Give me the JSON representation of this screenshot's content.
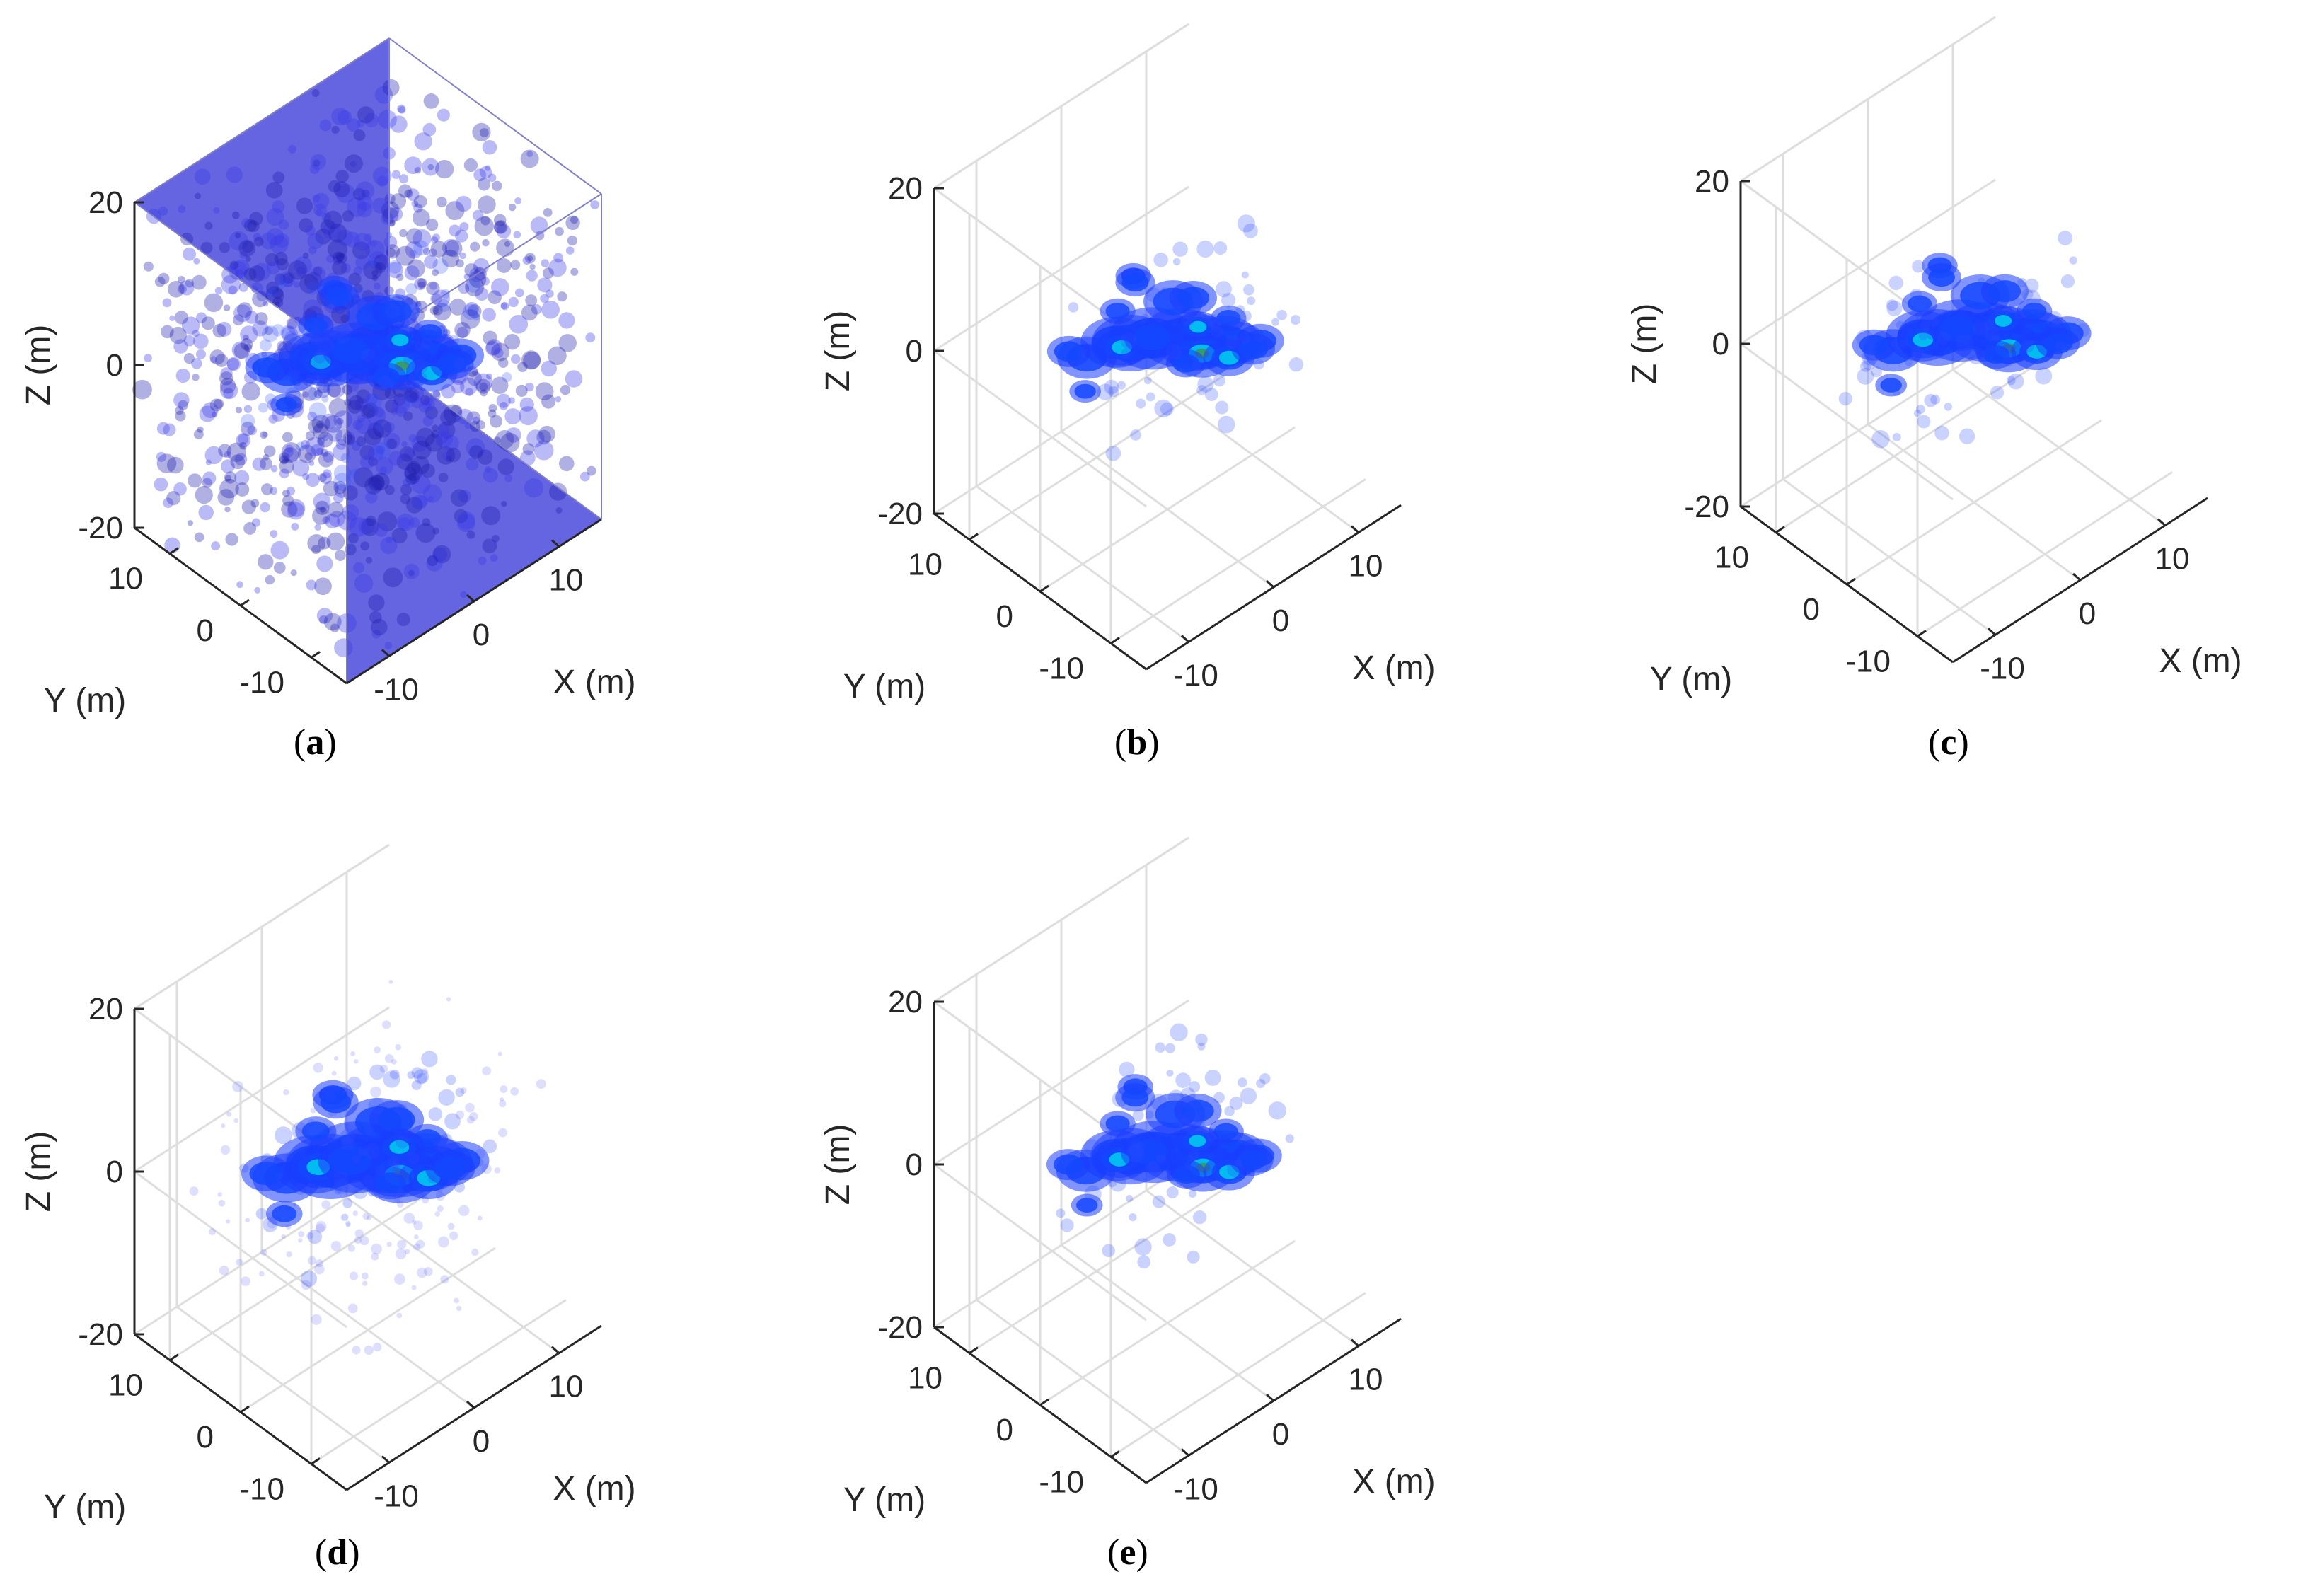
{
  "chart_data": [
    {
      "type": "3d-volume",
      "panel_label": "a",
      "xlabel": "X (m)",
      "ylabel": "Y (m)",
      "zlabel": "Z (m)",
      "xticks": [
        "-10",
        "0",
        "10"
      ],
      "yticks": [
        "10",
        "0",
        "-10"
      ],
      "zticks": [
        "20",
        "0",
        "-20"
      ],
      "xlim": [
        -15,
        15
      ],
      "ylim": [
        -15,
        15
      ],
      "zlim": [
        -20,
        20
      ],
      "grid": false,
      "box": true,
      "background_haze": "dense",
      "colormap": [
        "#2020c8",
        "#1848ff",
        "#00d8ff",
        "#2fa060"
      ]
    },
    {
      "type": "3d-volume",
      "panel_label": "b",
      "xlabel": "X (m)",
      "ylabel": "Y (m)",
      "zlabel": "Z (m)",
      "xticks": [
        "-10",
        "0",
        "10"
      ],
      "yticks": [
        "10",
        "0",
        "-10"
      ],
      "zticks": [
        "20",
        "0",
        "-20"
      ],
      "xlim": [
        -15,
        15
      ],
      "ylim": [
        -15,
        15
      ],
      "zlim": [
        -20,
        20
      ],
      "grid": true,
      "box": false,
      "background_haze": "none",
      "colormap": [
        "#2020c8",
        "#1848ff",
        "#00d8ff",
        "#2fa060"
      ]
    },
    {
      "type": "3d-volume",
      "panel_label": "c",
      "xlabel": "X (m)",
      "ylabel": "Y (m)",
      "zlabel": "Z (m)",
      "xticks": [
        "-10",
        "0",
        "10"
      ],
      "yticks": [
        "10",
        "0",
        "-10"
      ],
      "zticks": [
        "20",
        "0",
        "-20"
      ],
      "xlim": [
        -15,
        15
      ],
      "ylim": [
        -15,
        15
      ],
      "zlim": [
        -20,
        20
      ],
      "grid": true,
      "box": false,
      "background_haze": "none",
      "colormap": [
        "#2020c8",
        "#1848ff",
        "#00d8ff",
        "#2fa060"
      ]
    },
    {
      "type": "3d-volume",
      "panel_label": "d",
      "xlabel": "X (m)",
      "ylabel": "Y (m)",
      "zlabel": "Z (m)",
      "xticks": [
        "-10",
        "0",
        "10"
      ],
      "yticks": [
        "10",
        "0",
        "-10"
      ],
      "zticks": [
        "20",
        "0",
        "-20"
      ],
      "xlim": [
        -15,
        15
      ],
      "ylim": [
        -15,
        15
      ],
      "zlim": [
        -20,
        20
      ],
      "grid": true,
      "box": false,
      "background_haze": "sparse",
      "colormap": [
        "#2020c8",
        "#1848ff",
        "#00d8ff",
        "#2fa060"
      ]
    },
    {
      "type": "3d-volume",
      "panel_label": "e",
      "xlabel": "X (m)",
      "ylabel": "Y (m)",
      "zlabel": "Z (m)",
      "xticks": [
        "-10",
        "0",
        "10"
      ],
      "yticks": [
        "10",
        "0",
        "-10"
      ],
      "zticks": [
        "20",
        "0",
        "-20"
      ],
      "xlim": [
        -15,
        15
      ],
      "ylim": [
        -15,
        15
      ],
      "zlim": [
        -20,
        20
      ],
      "grid": true,
      "box": false,
      "background_haze": "none",
      "colormap": [
        "#2020c8",
        "#1848ff",
        "#00d8ff",
        "#2fa060"
      ]
    }
  ]
}
